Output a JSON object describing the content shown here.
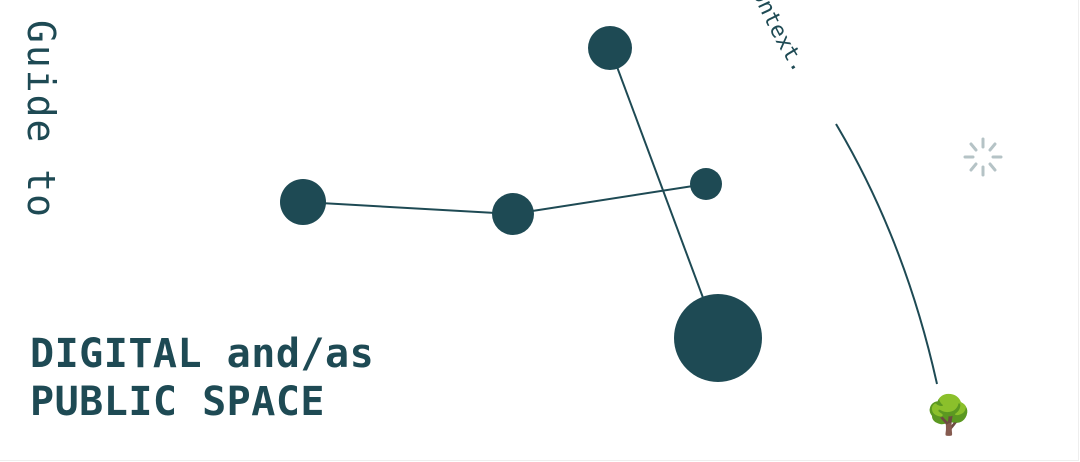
{
  "vertical_title": "Guide to",
  "title_line_1": "DIGITAL and/as",
  "title_line_2": "PUBLIC SPACE",
  "curve_text": "ontext.",
  "colors": {
    "primary": "#1e4a54",
    "spinner": "#b5c3c6",
    "background": "#ffffff"
  },
  "icons": {
    "tree": "🌳",
    "loading": "spinner-icon"
  }
}
